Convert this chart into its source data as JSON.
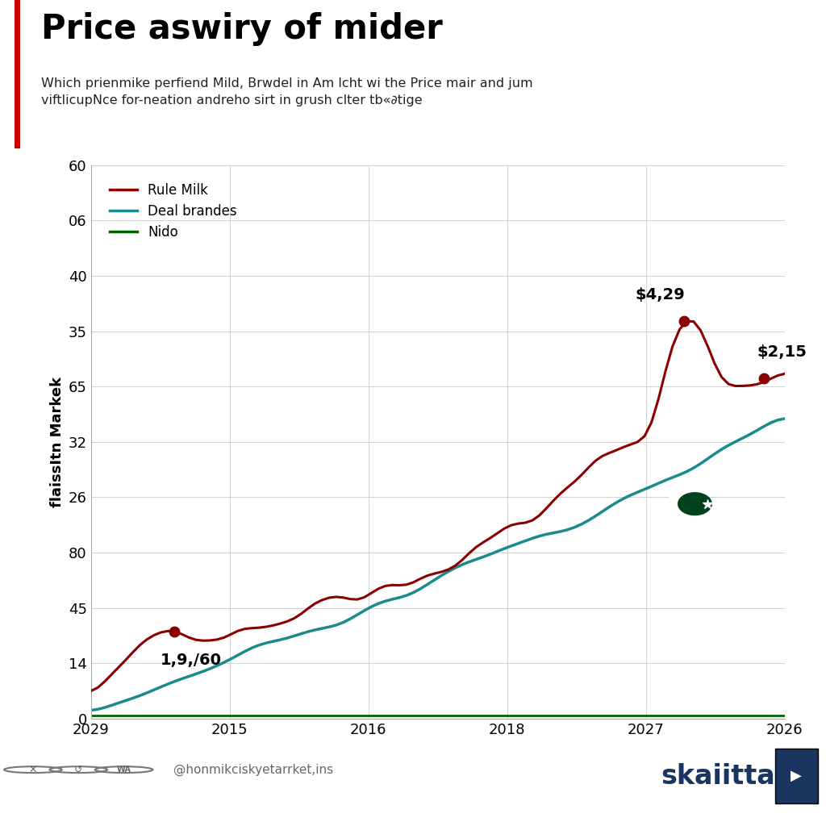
{
  "title": "Price aswiry of mider",
  "subtitle": "Which prienmike perfiend Mild, Brwdel in Am lcht wi the Price mair and jum\nviftlicupNce for-neation andreho sirt in grush сlter tb«∂tige",
  "ylabel": "flaissItn Markek",
  "xlabel_ticks": [
    "2029",
    "2015",
    "2016",
    "2018",
    "2027",
    "2026"
  ],
  "ytick_labels": [
    "0",
    "14",
    "45",
    "80",
    "26",
    "32",
    "65",
    "35",
    "40",
    "06",
    "60"
  ],
  "line1_color": "#8B0000",
  "line2_color": "#1a8a8a",
  "line3_color": "#006400",
  "legend_labels": [
    "Rule Milk",
    "Deal brandes",
    "Nido"
  ],
  "annotation1_text": "1,9,/60",
  "annotation2_text": "$4,29",
  "annotation3_text": "$2,15",
  "footer_text": "@honmikciskyetarrket,ins",
  "brand_text": "skaiitta",
  "background_color": "#ffffff",
  "title_bar_color": "#cc0000",
  "n_points": 100,
  "line1_seed": 42,
  "line2_seed": 7,
  "line3_seed": 0
}
